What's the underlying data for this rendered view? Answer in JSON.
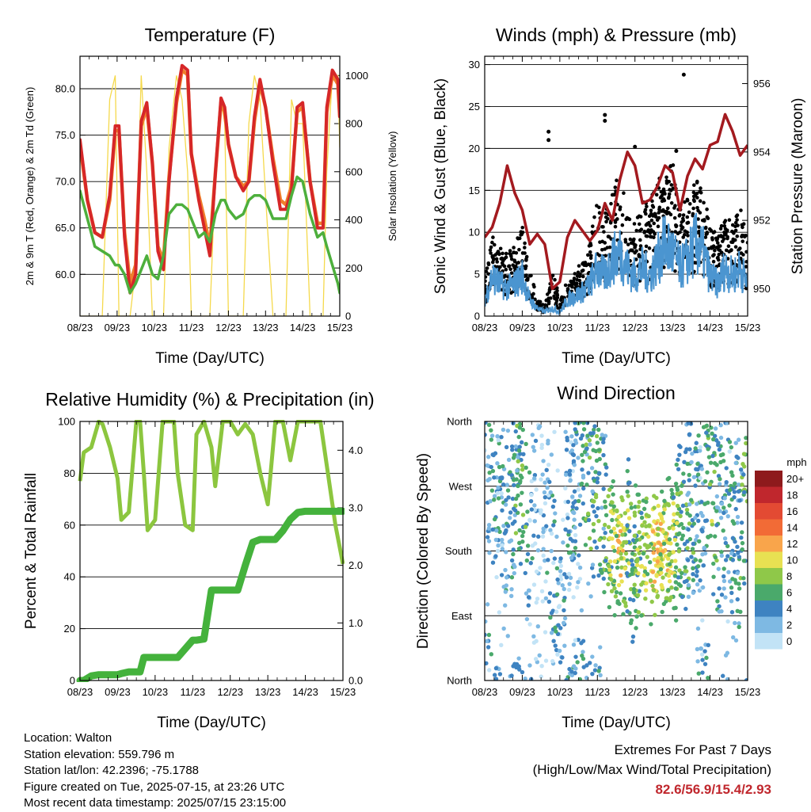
{
  "x_ticks": [
    "08/23",
    "09/23",
    "10/23",
    "11/23",
    "12/23",
    "13/23",
    "14/23",
    "15/23"
  ],
  "x_label": "Time (Day/UTC)",
  "colors": {
    "t2m": "#d62728",
    "t9m": "#f07f2c",
    "td": "#4daf3c",
    "solar": "#f5d94c",
    "wind": "#4b95d0",
    "gust": "#000000",
    "pressure": "#a31a1f",
    "rh": "#8cc63f",
    "precip": "#44b23c"
  },
  "chart_data": [
    {
      "type": "line",
      "title": "Temperature (F)",
      "ylabel": "2m & 9m T (Red, Orange) & 2m Td (Green)",
      "y2label": "Solar Insolation (Yellow)",
      "ylim": [
        55.5,
        83.5
      ],
      "y2lim": [
        0,
        1080
      ],
      "yticks": [
        "60.0",
        "65.0",
        "70.0",
        "75.0",
        "80.0"
      ],
      "y2ticks": [
        "0",
        "200",
        "400",
        "600",
        "800",
        "1000"
      ],
      "x": [
        8.0,
        8.2,
        8.4,
        8.6,
        8.8,
        8.95,
        9.05,
        9.2,
        9.35,
        9.5,
        9.65,
        9.8,
        9.95,
        10.1,
        10.25,
        10.4,
        10.6,
        10.75,
        10.9,
        11.0,
        11.2,
        11.35,
        11.5,
        11.65,
        11.8,
        11.9,
        12.0,
        12.2,
        12.4,
        12.55,
        12.7,
        12.85,
        13.0,
        13.2,
        13.4,
        13.55,
        13.7,
        13.85,
        14.0,
        14.2,
        14.4,
        14.55,
        14.65,
        14.8,
        14.95,
        15.0
      ],
      "series": [
        {
          "name": "2m T",
          "values": [
            74.5,
            68,
            64.5,
            64,
            68.5,
            76,
            76,
            64,
            58,
            60,
            76.5,
            78.5,
            72,
            62.5,
            60.5,
            70,
            79,
            82.5,
            82,
            73,
            68,
            65,
            62,
            71,
            79,
            78,
            74,
            70.5,
            69,
            70,
            77,
            81,
            78,
            72,
            67,
            67,
            69,
            78,
            78.5,
            70,
            65,
            65,
            78,
            82,
            81,
            77
          ]
        },
        {
          "name": "9m T",
          "values": [
            74,
            68,
            64.5,
            64,
            68,
            75.5,
            75.5,
            64.5,
            59,
            61,
            76,
            78,
            72,
            63,
            61.5,
            70.5,
            78.5,
            82,
            81.5,
            73,
            68.5,
            66,
            63,
            71,
            78.5,
            77.5,
            74,
            70.5,
            69.5,
            70,
            76.5,
            80.5,
            78,
            72.5,
            68,
            67.5,
            69.5,
            77.5,
            78,
            70,
            65.5,
            65.5,
            77.5,
            81.5,
            80.5,
            77
          ]
        },
        {
          "name": "2m Td",
          "values": [
            69,
            66,
            63,
            62.5,
            62,
            61,
            61,
            60,
            58,
            59,
            60.5,
            62,
            60,
            59.5,
            62,
            66.5,
            67.5,
            67.5,
            67,
            66,
            64,
            64.5,
            63.5,
            66.5,
            68,
            68,
            67,
            66,
            66.5,
            68,
            68.5,
            68.5,
            68,
            66,
            66,
            66,
            68.5,
            70.5,
            70,
            66.5,
            64,
            64.5,
            63,
            61,
            59,
            58
          ]
        },
        {
          "name": "Solar",
          "values": [
            0,
            0,
            0,
            0,
            900,
            1000,
            0,
            0,
            0,
            200,
            1000,
            600,
            0,
            0,
            0,
            700,
            1000,
            900,
            600,
            0,
            0,
            0,
            0,
            600,
            900,
            800,
            0,
            0,
            0,
            800,
            1000,
            900,
            500,
            0,
            0,
            0,
            900,
            800,
            800,
            0,
            0,
            0,
            600,
            1000,
            1000,
            700
          ]
        }
      ]
    },
    {
      "type": "scatter",
      "title": "Winds (mph) & Pressure (mb)",
      "ylabel": "Sonic Wind & Gust (Blue, Black)",
      "y2label": "Station Pressure (Maroon)",
      "ylim": [
        0,
        31
      ],
      "y2lim": [
        949.2,
        956.8
      ],
      "yticks": [
        "0",
        "5",
        "10",
        "15",
        "20",
        "25",
        "30"
      ],
      "y2ticks": [
        "950",
        "952",
        "954",
        "956"
      ],
      "x": [
        8.0,
        8.2,
        8.4,
        8.6,
        8.8,
        9.0,
        9.2,
        9.4,
        9.6,
        9.8,
        10.0,
        10.2,
        10.4,
        10.6,
        10.8,
        11.0,
        11.2,
        11.4,
        11.6,
        11.8,
        12.0,
        12.2,
        12.4,
        12.6,
        12.8,
        13.0,
        13.2,
        13.4,
        13.6,
        13.8,
        14.0,
        14.2,
        14.4,
        14.6,
        14.8,
        15.0
      ],
      "series": [
        {
          "name": "Pressure",
          "values": [
            951.5,
            951.8,
            952.5,
            953.6,
            952.8,
            952.3,
            951.3,
            951.6,
            951.3,
            950.0,
            950.2,
            951.5,
            952.0,
            951.7,
            951.4,
            951.7,
            952.5,
            952.0,
            953.2,
            954.0,
            953.6,
            952.5,
            952.6,
            953.0,
            953.6,
            953.4,
            952.3,
            953.3,
            953.8,
            953.5,
            954.2,
            954.3,
            955.1,
            954.6,
            953.9,
            954.2
          ]
        },
        {
          "name": "Wind",
          "values": [
            2,
            5,
            4,
            3.5,
            4,
            5,
            2,
            1,
            0.5,
            1,
            0.5,
            2,
            2.5,
            3,
            4,
            6,
            5,
            7,
            8,
            6,
            5,
            6,
            5,
            7,
            9,
            8,
            6,
            7,
            9,
            8,
            5,
            4,
            6,
            5,
            6,
            4
          ]
        },
        {
          "name": "Gust",
          "values": [
            4,
            9,
            8,
            7,
            8,
            10,
            5,
            2,
            1,
            5,
            2,
            4,
            5,
            6,
            8,
            13,
            11,
            14,
            16,
            12,
            10,
            13,
            12,
            16,
            15,
            17,
            12,
            13,
            15,
            14,
            10,
            9,
            11,
            10,
            12,
            8
          ]
        }
      ],
      "outliers": [
        {
          "x": 9.7,
          "y": 22
        },
        {
          "x": 9.7,
          "y": 21
        },
        {
          "x": 11.2,
          "y": 24
        },
        {
          "x": 11.2,
          "y": 23.3
        },
        {
          "x": 12.0,
          "y": 20.2
        },
        {
          "x": 13.3,
          "y": 28.8
        },
        {
          "x": 13.1,
          "y": 19.7
        }
      ]
    },
    {
      "type": "line",
      "title": "Relative Humidity (%) & Precipitation (in)",
      "ylabel": "Percent & Total Rainfall",
      "ylim": [
        0,
        100
      ],
      "y2lim": [
        0,
        4.5
      ],
      "yticks": [
        "0",
        "20",
        "40",
        "60",
        "80",
        "100"
      ],
      "y2ticks": [
        "0.0",
        "1.0",
        "2.0",
        "3.0",
        "4.0"
      ],
      "x": [
        8.0,
        8.1,
        8.3,
        8.5,
        8.6,
        8.8,
        9.0,
        9.1,
        9.3,
        9.5,
        9.6,
        9.7,
        9.8,
        10.0,
        10.2,
        10.5,
        10.6,
        10.8,
        11.0,
        11.1,
        11.3,
        11.5,
        11.6,
        11.8,
        12.0,
        12.2,
        12.4,
        12.6,
        12.8,
        13.0,
        13.2,
        13.4,
        13.6,
        13.8,
        14.0,
        14.2,
        14.4,
        14.6,
        14.8,
        15.0
      ],
      "series": [
        {
          "name": "RH",
          "values": [
            77,
            88,
            90,
            100,
            99,
            90,
            78,
            62,
            65,
            100,
            100,
            80,
            58,
            62,
            100,
            100,
            80,
            60,
            58,
            95,
            100,
            90,
            75,
            100,
            100,
            95,
            99,
            95,
            80,
            68,
            100,
            100,
            85,
            100,
            100,
            100,
            100,
            80,
            60,
            45
          ]
        },
        {
          "name": "Precipitation",
          "values": [
            0,
            0,
            0.08,
            0.1,
            0.1,
            0.1,
            0.1,
            0.12,
            0.15,
            0.15,
            0.15,
            0.4,
            0.4,
            0.4,
            0.4,
            0.4,
            0.4,
            0.55,
            0.7,
            0.7,
            0.72,
            1.57,
            1.57,
            1.57,
            1.57,
            1.57,
            2.0,
            2.4,
            2.45,
            2.45,
            2.45,
            2.6,
            2.8,
            2.92,
            2.94,
            2.94,
            2.94,
            2.94,
            2.94,
            2.94
          ]
        }
      ]
    },
    {
      "type": "scatter",
      "title": "Wind Direction",
      "ylabel": "Direction (Colored By Speed)",
      "yticks": [
        "North",
        "East",
        "South",
        "West",
        "North"
      ],
      "ylim": [
        0,
        360
      ],
      "colorbar": {
        "title": "mph",
        "labels": [
          "20+",
          "18",
          "16",
          "14",
          "12",
          "10",
          "8",
          "6",
          "4",
          "2",
          "0"
        ],
        "colors": [
          "#8e1a1c",
          "#c0272d",
          "#e34a33",
          "#f26b36",
          "#f9a54b",
          "#e8e152",
          "#8fc849",
          "#4aa96b",
          "#3e83c1",
          "#7eb9e3",
          "#c2e3f6"
        ]
      },
      "x": [
        8.0,
        8.2,
        8.4,
        8.6,
        8.8,
        9.0,
        9.2,
        9.4,
        9.6,
        9.8,
        10.0,
        10.2,
        10.4,
        10.6,
        10.8,
        11.0,
        11.2,
        11.4,
        11.6,
        11.8,
        12.0,
        12.2,
        12.4,
        12.6,
        12.8,
        13.0,
        13.2,
        13.4,
        13.6,
        13.8,
        14.0,
        14.2,
        14.4,
        14.6,
        14.8,
        15.0
      ],
      "direction": [
        340,
        300,
        250,
        200,
        280,
        260,
        230,
        320,
        240,
        150,
        60,
        260,
        270,
        320,
        250,
        290,
        210,
        190,
        180,
        185,
        175,
        170,
        175,
        180,
        185,
        190,
        200,
        220,
        260,
        280,
        300,
        200,
        260,
        220,
        180,
        320
      ],
      "speed": [
        2,
        4,
        3,
        4,
        5,
        6,
        3,
        1,
        2,
        3,
        2,
        3,
        3,
        4,
        5,
        6,
        5,
        8,
        9,
        7,
        6,
        8,
        9,
        10,
        9,
        8,
        6,
        5,
        4,
        3,
        7,
        5,
        3,
        4,
        5,
        6
      ]
    }
  ],
  "info": {
    "location": "Location: Walton",
    "elevation": "Station elevation: 559.796 m",
    "latlon": "Station lat/lon: 42.2396; -75.1788",
    "created": "Figure created on Tue, 2025-07-15, at 23:26 UTC",
    "recent": "Most recent data timestamp: 2025/07/15 23:15:00"
  },
  "extremes": {
    "title": "Extremes For Past 7 Days",
    "subtitle": "(High/Low/Max Wind/Total Precipitation)",
    "values": "82.6/56.9/15.4/2.93"
  }
}
